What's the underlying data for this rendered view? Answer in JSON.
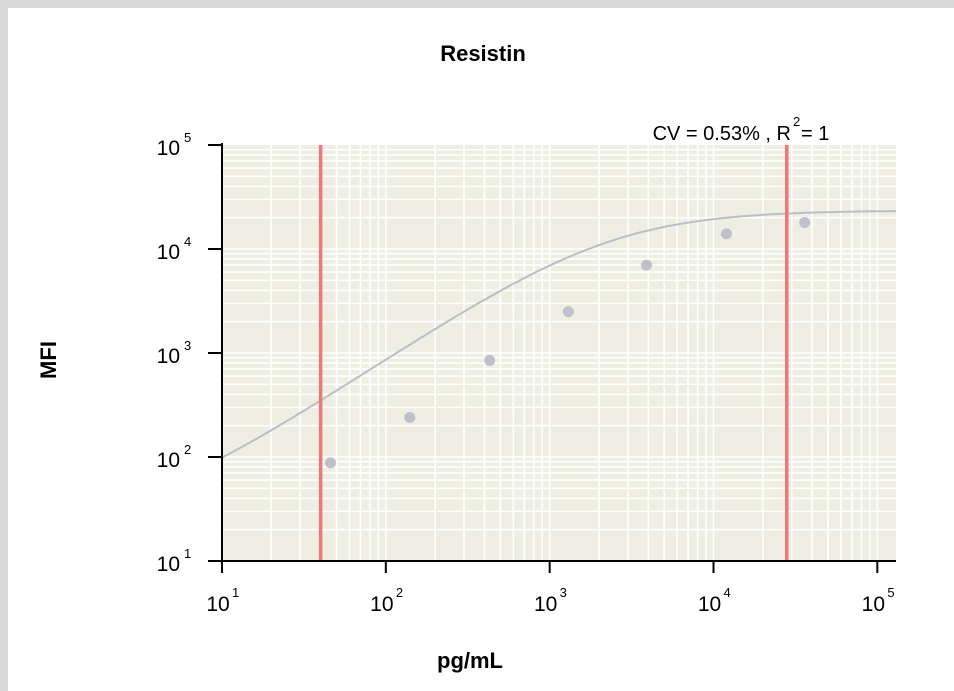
{
  "chart_data": {
    "type": "scatter",
    "title": "Resistin",
    "xlabel": "pg/mL",
    "ylabel": "MFI",
    "x_scale": "log",
    "y_scale": "log",
    "xlim": [
      10,
      130000
    ],
    "ylim": [
      10,
      100000
    ],
    "x_ticks": [
      {
        "base": "10",
        "exp": "1",
        "value": 10
      },
      {
        "base": "10",
        "exp": "2",
        "value": 100
      },
      {
        "base": "10",
        "exp": "3",
        "value": 1000
      },
      {
        "base": "10",
        "exp": "4",
        "value": 10000
      },
      {
        "base": "10",
        "exp": "5",
        "value": 100000
      }
    ],
    "y_ticks": [
      {
        "base": "10",
        "exp": "1",
        "value": 10
      },
      {
        "base": "10",
        "exp": "2",
        "value": 100
      },
      {
        "base": "10",
        "exp": "3",
        "value": 1000
      },
      {
        "base": "10",
        "exp": "4",
        "value": 10000
      },
      {
        "base": "10",
        "exp": "5",
        "value": 100000
      }
    ],
    "annotation": {
      "prefix": "CV = 0.53% , R",
      "sup": "2",
      "suffix": " = 1"
    },
    "series": [
      {
        "points": [
          {
            "x": 46,
            "y": 88
          },
          {
            "x": 140,
            "y": 240
          },
          {
            "x": 430,
            "y": 850
          },
          {
            "x": 1300,
            "y": 2500
          },
          {
            "x": 3900,
            "y": 7000
          },
          {
            "x": 12000,
            "y": 14000
          },
          {
            "x": 36000,
            "y": 18000
          }
        ],
        "color": "#c0c0cc"
      }
    ],
    "fit_curve": {
      "color": "#bdbdc9",
      "type": "4PL",
      "bottom": 21,
      "top": 23500,
      "ec50": 2300,
      "hill": 1.05
    },
    "reference_lines": [
      {
        "x": 40,
        "color": "#ee7777"
      },
      {
        "x": 28000,
        "color": "#ee7777"
      }
    ],
    "grid": true,
    "plot_background": "#efeee2",
    "grid_color": "#ffffff"
  }
}
